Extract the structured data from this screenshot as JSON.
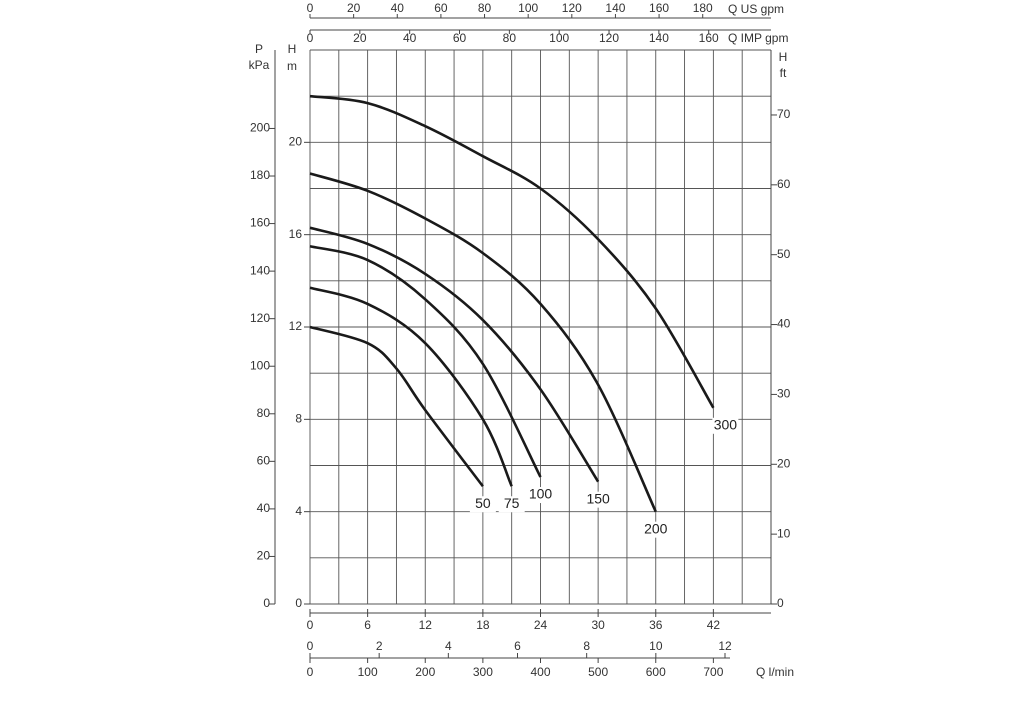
{
  "chart_data": {
    "type": "line",
    "xlim": [
      0,
      48
    ],
    "xticks": [
      0,
      6,
      12,
      18,
      24,
      30,
      36,
      42
    ],
    "ylim": [
      0,
      24
    ],
    "yticks": [
      0,
      4,
      8,
      12,
      16,
      20
    ],
    "y_label": [
      "H",
      "m"
    ],
    "grid": true,
    "xgrid": [
      0,
      3,
      6,
      9,
      12,
      15,
      18,
      21,
      24,
      27,
      30,
      33,
      36,
      39,
      42,
      45,
      48
    ],
    "ygrid": [
      0,
      2,
      4,
      6,
      8,
      10,
      12,
      14,
      16,
      18,
      20,
      22,
      24
    ],
    "axes": [
      {
        "side": "left",
        "label": [
          "P",
          "kPa"
        ],
        "lim": [
          0,
          233
        ],
        "ticks": [
          0,
          20,
          40,
          60,
          80,
          100,
          120,
          140,
          160,
          180,
          200
        ]
      },
      {
        "side": "right",
        "label": [
          "H",
          "ft"
        ],
        "lim": [
          0,
          79.3
        ],
        "ticks": [
          0,
          10,
          20,
          30,
          40,
          50,
          60,
          70
        ]
      },
      {
        "side": "top",
        "label": [
          "Q US gpm"
        ],
        "lim": [
          0,
          211.3
        ],
        "ticks": [
          0,
          20,
          40,
          60,
          80,
          100,
          120,
          140,
          160,
          180
        ]
      },
      {
        "side": "top2",
        "label": [
          "Q IMP gpm"
        ],
        "lim": [
          0,
          185
        ],
        "ticks": [
          0,
          20,
          40,
          60,
          80,
          100,
          120,
          140,
          160
        ]
      },
      {
        "side": "bottom",
        "label": [],
        "lim": [
          0,
          13.33
        ],
        "ticks": [
          0,
          2,
          4,
          6,
          8,
          10,
          12
        ]
      },
      {
        "side": "bottom2",
        "label": [
          "Q l/min"
        ],
        "lim": [
          0,
          800
        ],
        "ticks": [
          0,
          100,
          200,
          300,
          400,
          500,
          600,
          700
        ]
      }
    ],
    "series": [
      {
        "name": "50",
        "color": "#1a1a1a",
        "x": [
          0,
          6,
          9,
          12,
          18
        ],
        "values": [
          12.0,
          11.3,
          10.2,
          8.4,
          5.1
        ]
      },
      {
        "name": "75",
        "color": "#1a1a1a",
        "x": [
          0,
          6,
          12,
          18,
          21
        ],
        "values": [
          13.7,
          13.0,
          11.3,
          8.0,
          5.1
        ]
      },
      {
        "name": "100",
        "color": "#1a1a1a",
        "x": [
          0,
          6,
          12,
          18,
          24
        ],
        "values": [
          15.5,
          14.9,
          13.2,
          10.4,
          5.5
        ]
      },
      {
        "name": "150",
        "color": "#1a1a1a",
        "x": [
          0,
          6,
          12,
          18,
          24,
          30
        ],
        "values": [
          16.3,
          15.6,
          14.3,
          12.3,
          9.3,
          5.3
        ]
      },
      {
        "name": "200",
        "color": "#1a1a1a",
        "x": [
          0,
          6,
          12,
          18,
          24,
          30,
          36
        ],
        "values": [
          18.65,
          17.9,
          16.7,
          15.2,
          13.0,
          9.5,
          4.0
        ]
      },
      {
        "name": "300",
        "color": "#1a1a1a",
        "x": [
          0,
          6,
          12,
          18,
          24,
          30,
          36,
          42
        ],
        "values": [
          22.0,
          21.7,
          20.7,
          19.4,
          18.0,
          15.8,
          12.8,
          8.5
        ]
      }
    ]
  }
}
